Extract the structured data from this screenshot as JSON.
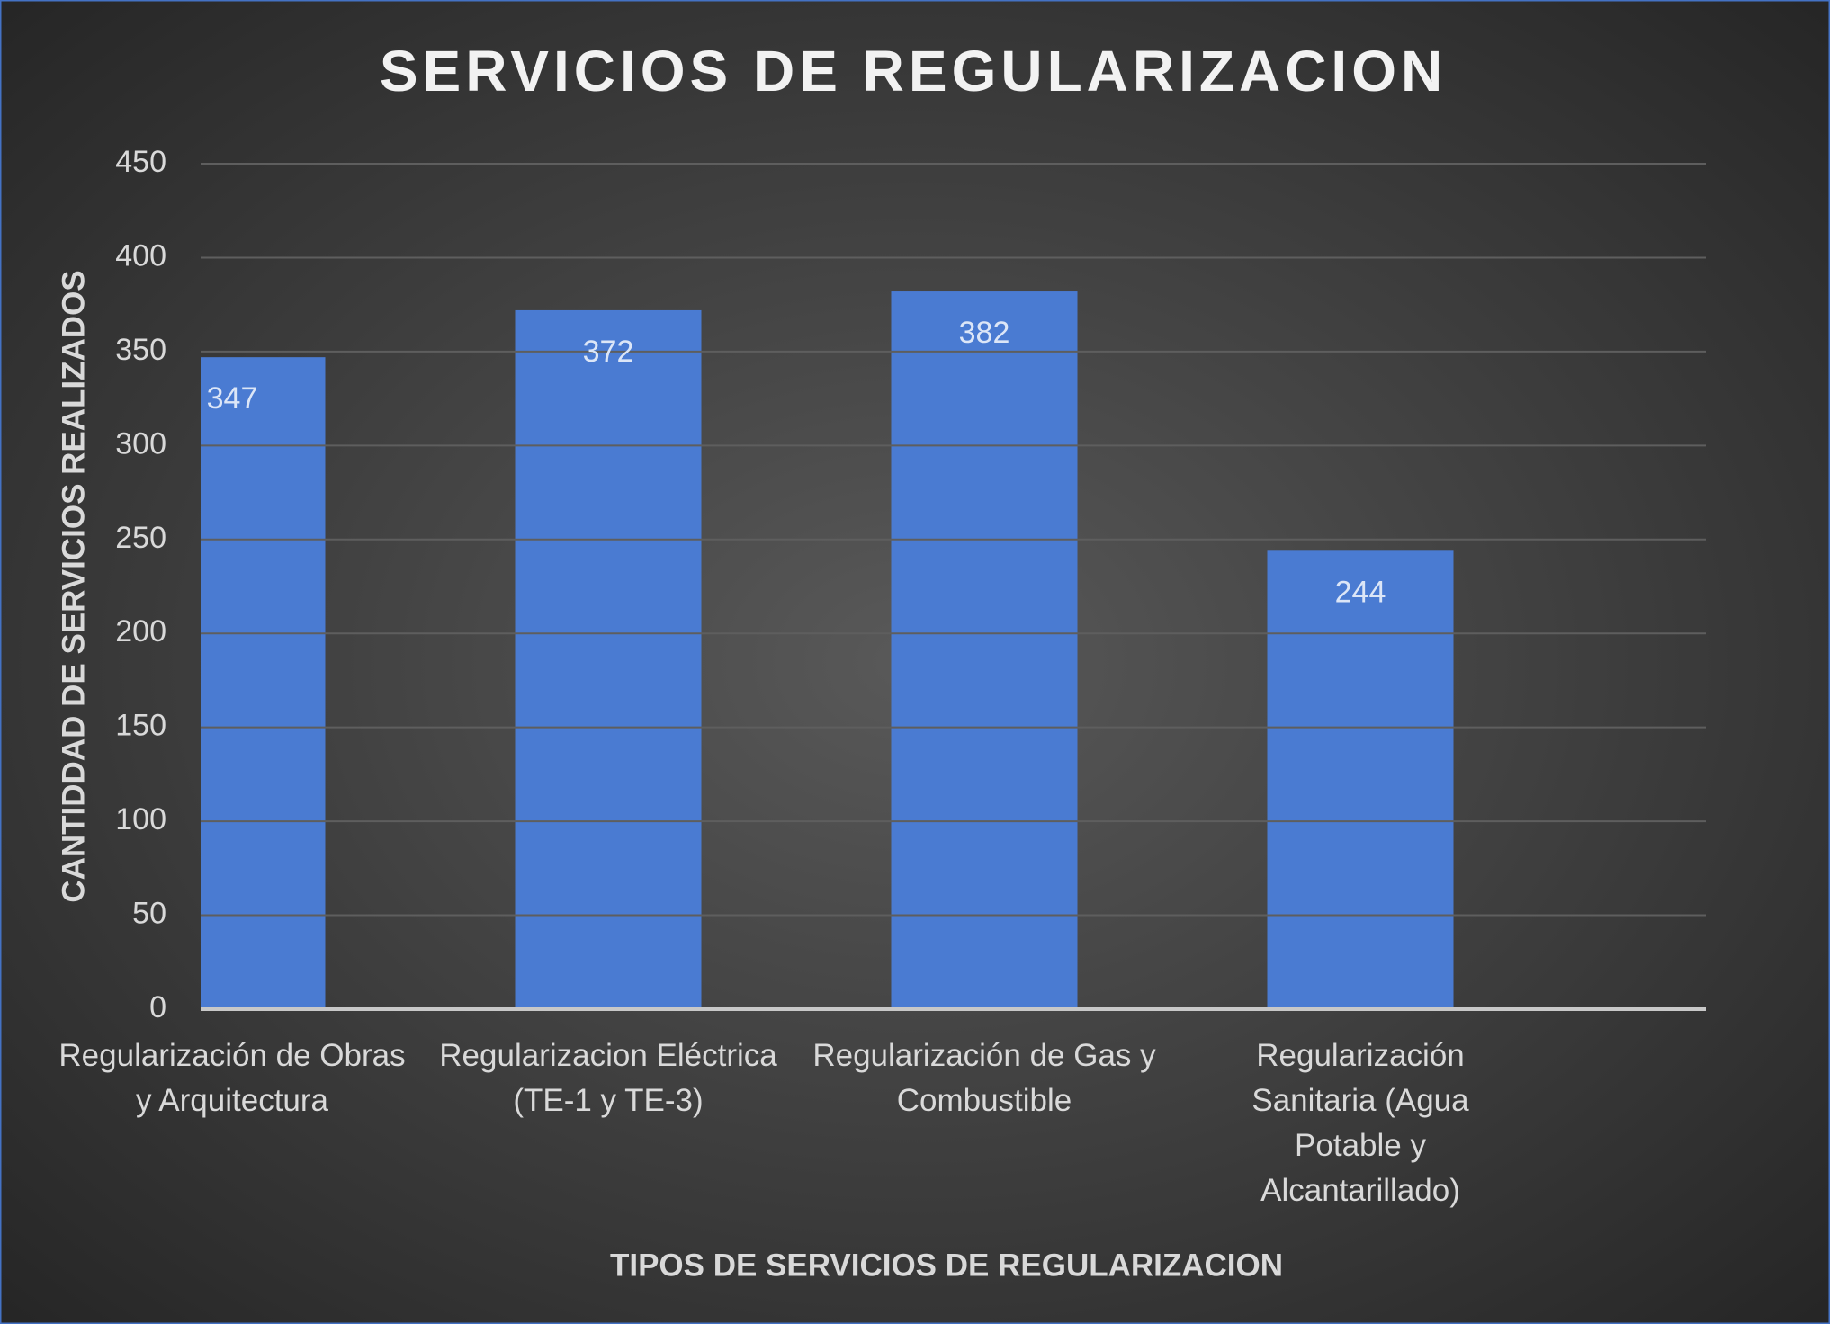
{
  "chart_data": {
    "type": "bar",
    "title": "SERVICIOS DE REGULARIZACION",
    "x_label": "TIPOS DE SERVICIOS DE REGULARIZACION",
    "y_label": "CANTIDDAD DE SERVICIOS REALIZADOS",
    "categories": [
      "Regularización de Obras y Arquitectura",
      "Regularizacion Eléctrica (TE-1 y TE-3)",
      "Regularización de Gas y Combustible",
      "Regularización Sanitaria (Agua Potable y Alcantarillado)"
    ],
    "values": [
      347,
      372,
      382,
      244
    ],
    "color": "#4a7bd2",
    "ylim": [
      0,
      450
    ],
    "yticks": [
      0,
      50,
      100,
      150,
      200,
      250,
      300,
      350,
      400,
      450
    ],
    "grid": true
  }
}
